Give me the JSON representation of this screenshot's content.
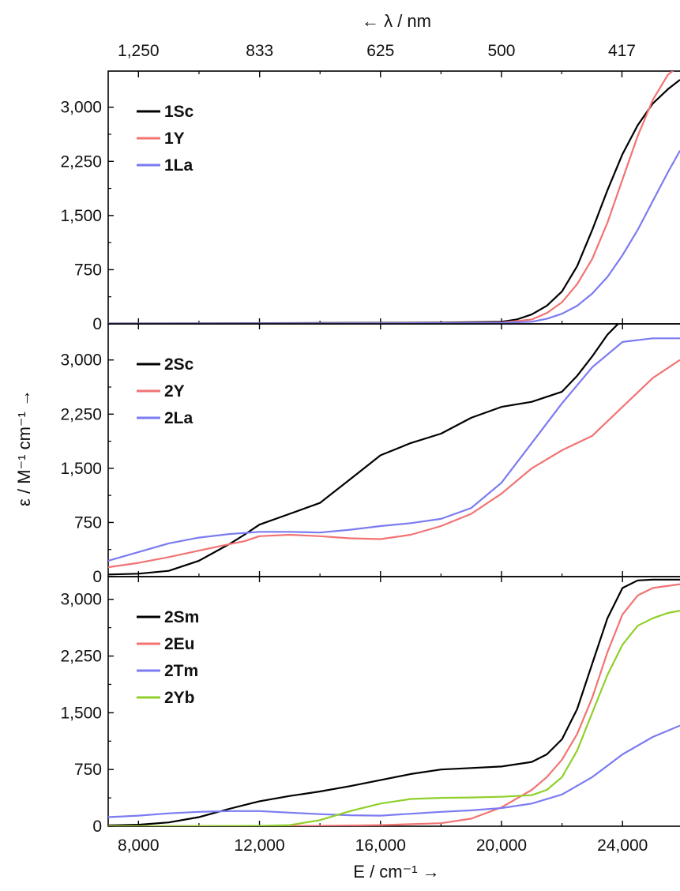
{
  "figure": {
    "top_axis_title": "← λ / nm",
    "y_axis_title": "ε / M⁻¹ cm⁻¹ →",
    "x_axis_title": "E / cm⁻¹ →"
  },
  "chart_data": [
    {
      "type": "line",
      "panel": "top",
      "x_unit": "cm-1",
      "xlim": [
        7000,
        25900
      ],
      "ylim": [
        0,
        3500
      ],
      "yticks": [
        0,
        750,
        1500,
        2250,
        3000
      ],
      "ytick_labels": [
        "0",
        "750",
        "1,500",
        "2,250",
        "3,000"
      ],
      "top_axis": {
        "label": "← λ / nm",
        "ticks_nm": [
          1250,
          833,
          625,
          500,
          417
        ],
        "tick_labels": [
          "1,250",
          "833",
          "625",
          "500",
          "417"
        ]
      },
      "legend_position": "top-left",
      "series": [
        {
          "name": "1Sc",
          "color": "#000000",
          "x": [
            7000,
            10000,
            14000,
            18000,
            20000,
            20500,
            21000,
            21500,
            22000,
            22500,
            23000,
            23500,
            24000,
            24500,
            25000,
            25500,
            25900
          ],
          "y": [
            5,
            8,
            12,
            18,
            30,
            60,
            130,
            250,
            450,
            800,
            1300,
            1850,
            2350,
            2750,
            3050,
            3250,
            3380
          ]
        },
        {
          "name": "1Y",
          "color": "#f27373",
          "x": [
            7000,
            14000,
            18000,
            20000,
            21000,
            21500,
            22000,
            22500,
            23000,
            23500,
            24000,
            24500,
            25000,
            25500,
            25900
          ],
          "y": [
            3,
            8,
            12,
            18,
            60,
            150,
            300,
            550,
            900,
            1400,
            2000,
            2600,
            3100,
            3450,
            3580
          ]
        },
        {
          "name": "1La",
          "color": "#7b7bf2",
          "x": [
            7000,
            14000,
            18000,
            20000,
            21000,
            21500,
            22000,
            22500,
            23000,
            23500,
            24000,
            24500,
            25000,
            25500,
            25900
          ],
          "y": [
            3,
            6,
            10,
            14,
            30,
            70,
            140,
            250,
            420,
            650,
            950,
            1300,
            1700,
            2100,
            2400
          ]
        }
      ]
    },
    {
      "type": "line",
      "panel": "middle",
      "x_unit": "cm-1",
      "xlim": [
        7000,
        25900
      ],
      "ylim": [
        0,
        3500
      ],
      "yticks": [
        0,
        750,
        1500,
        2250,
        3000
      ],
      "ytick_labels": [
        "0",
        "750",
        "1,500",
        "2,250",
        "3,000"
      ],
      "legend_position": "top-left",
      "series": [
        {
          "name": "2Sc",
          "color": "#000000",
          "x": [
            7000,
            8000,
            9000,
            10000,
            11000,
            11500,
            12000,
            13000,
            14000,
            15000,
            16000,
            17000,
            18000,
            19000,
            20000,
            21000,
            22000,
            22500,
            23000,
            23500,
            23900
          ],
          "y": [
            30,
            40,
            80,
            220,
            450,
            580,
            720,
            870,
            1020,
            1350,
            1680,
            1850,
            1980,
            2200,
            2350,
            2420,
            2560,
            2780,
            3050,
            3350,
            3520
          ]
        },
        {
          "name": "2Y",
          "color": "#f27373",
          "x": [
            7000,
            8000,
            9000,
            10000,
            11000,
            11500,
            12000,
            13000,
            14000,
            15000,
            16000,
            17000,
            18000,
            19000,
            20000,
            21000,
            22000,
            23000,
            24000,
            25000,
            25900
          ],
          "y": [
            130,
            190,
            270,
            360,
            450,
            490,
            560,
            580,
            560,
            530,
            520,
            580,
            700,
            870,
            1150,
            1500,
            1750,
            1950,
            2350,
            2750,
            3000
          ]
        },
        {
          "name": "2La",
          "color": "#7b7bf2",
          "x": [
            7000,
            8000,
            9000,
            10000,
            11000,
            12000,
            13000,
            14000,
            15000,
            16000,
            17000,
            18000,
            19000,
            20000,
            21000,
            22000,
            23000,
            24000,
            25000,
            25900
          ],
          "y": [
            220,
            340,
            460,
            540,
            590,
            620,
            620,
            610,
            650,
            700,
            740,
            800,
            950,
            1300,
            1850,
            2400,
            2900,
            3250,
            3300,
            3300
          ]
        }
      ]
    },
    {
      "type": "line",
      "panel": "bottom",
      "x_unit": "cm-1",
      "xlim": [
        7000,
        25900
      ],
      "ylim": [
        0,
        3300
      ],
      "yticks": [
        0,
        750,
        1500,
        2250,
        3000
      ],
      "ytick_labels": [
        "0",
        "750",
        "1,500",
        "2,250",
        "3,000"
      ],
      "xticks": [
        8000,
        12000,
        16000,
        20000,
        24000
      ],
      "xtick_labels": [
        "8,000",
        "12,000",
        "16,000",
        "20,000",
        "24,000"
      ],
      "xlabel": "E / cm⁻¹ →",
      "legend_position": "top-left",
      "series": [
        {
          "name": "2Sm",
          "color": "#000000",
          "x": [
            7000,
            8000,
            9000,
            10000,
            11000,
            12000,
            13000,
            14000,
            15000,
            16000,
            17000,
            18000,
            19000,
            20000,
            21000,
            21500,
            22000,
            22500,
            23000,
            23500,
            24000,
            24500,
            25000,
            25900
          ],
          "y": [
            10,
            20,
            50,
            120,
            230,
            330,
            400,
            460,
            530,
            610,
            690,
            750,
            770,
            790,
            850,
            950,
            1150,
            1550,
            2150,
            2750,
            3150,
            3250,
            3260,
            3260
          ]
        },
        {
          "name": "2Eu",
          "color": "#f27373",
          "x": [
            7000,
            10000,
            14000,
            16000,
            18000,
            19000,
            20000,
            21000,
            21500,
            22000,
            22500,
            23000,
            23500,
            24000,
            24500,
            25000,
            25900
          ],
          "y": [
            0,
            2,
            5,
            15,
            40,
            100,
            250,
            480,
            650,
            880,
            1220,
            1700,
            2300,
            2800,
            3050,
            3150,
            3200
          ]
        },
        {
          "name": "2Tm",
          "color": "#7b7bf2",
          "x": [
            7000,
            8000,
            9000,
            10000,
            11000,
            12000,
            13000,
            14000,
            15000,
            16000,
            17000,
            18000,
            19000,
            20000,
            21000,
            22000,
            23000,
            24000,
            25000,
            25900
          ],
          "y": [
            120,
            140,
            170,
            190,
            200,
            200,
            180,
            160,
            145,
            140,
            165,
            190,
            210,
            240,
            300,
            420,
            650,
            950,
            1180,
            1330
          ]
        },
        {
          "name": "2Yb",
          "color": "#8fd02a",
          "x": [
            7000,
            10000,
            12000,
            13000,
            14000,
            15000,
            16000,
            17000,
            18000,
            19000,
            20000,
            21000,
            21500,
            22000,
            22500,
            23000,
            23500,
            24000,
            24500,
            25000,
            25500,
            25900
          ],
          "y": [
            0,
            2,
            5,
            15,
            80,
            200,
            300,
            360,
            375,
            380,
            390,
            410,
            480,
            650,
            1000,
            1500,
            2000,
            2400,
            2650,
            2750,
            2820,
            2850
          ]
        }
      ]
    }
  ]
}
